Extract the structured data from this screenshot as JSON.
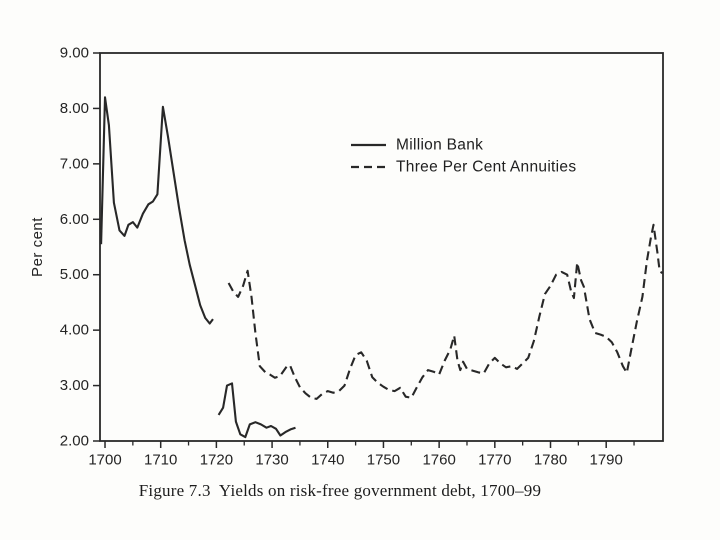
{
  "figure": {
    "caption": "Figure 7.3  Yields on risk-free government debt, 1700–99"
  },
  "chart_data": {
    "type": "line",
    "title": "",
    "xlabel": "",
    "ylabel": "Per cent",
    "xlim": [
      1699.1,
      1800.2
    ],
    "ylim": [
      2,
      9
    ],
    "grid": false,
    "legend_position": "upper-center-inside",
    "ink_color": "#282828",
    "x_ticks_major": [
      1700,
      1710,
      1720,
      1730,
      1740,
      1750,
      1760,
      1770,
      1780,
      1790
    ],
    "x_tick_labels": [
      "1700",
      "1710",
      "1720",
      "1730",
      "1740",
      "1750",
      "1760",
      "1770",
      "1780",
      "1790"
    ],
    "x_ticks_minor": [
      1705,
      1715,
      1725,
      1735,
      1745,
      1755,
      1765,
      1775,
      1785,
      1795
    ],
    "y_ticks": [
      2,
      3,
      4,
      5,
      6,
      7,
      8,
      9
    ],
    "y_tick_labels": [
      "2.00",
      "3.00",
      "4.00",
      "5.00",
      "6.00",
      "7.00",
      "8.00",
      "9.00"
    ],
    "legend": [
      {
        "label": "Million Bank",
        "style": "solid"
      },
      {
        "label": "Three Per Cent Annuities",
        "style": "dashed"
      }
    ],
    "series": [
      {
        "name": "Million Bank",
        "style": "solid",
        "segments": [
          [
            [
              1699.3,
              5.55
            ],
            [
              1700.0,
              8.2
            ],
            [
              1700.7,
              7.7
            ],
            [
              1701.6,
              6.3
            ],
            [
              1702.6,
              5.8
            ],
            [
              1703.5,
              5.7
            ],
            [
              1704.2,
              5.9
            ],
            [
              1705.0,
              5.95
            ],
            [
              1705.8,
              5.85
            ],
            [
              1706.8,
              6.1
            ],
            [
              1707.8,
              6.27
            ],
            [
              1708.6,
              6.32
            ],
            [
              1709.4,
              6.45
            ],
            [
              1710.4,
              8.03
            ],
            [
              1711.3,
              7.5
            ],
            [
              1712.3,
              6.85
            ],
            [
              1713.3,
              6.2
            ],
            [
              1714.3,
              5.62
            ],
            [
              1715.2,
              5.18
            ],
            [
              1716.2,
              4.8
            ],
            [
              1717.1,
              4.45
            ],
            [
              1718.0,
              4.22
            ],
            [
              1718.8,
              4.12
            ],
            [
              1719.4,
              4.2
            ]
          ],
          [
            [
              1720.4,
              2.47
            ],
            [
              1721.2,
              2.6
            ],
            [
              1721.9,
              3.0
            ],
            [
              1722.8,
              3.04
            ],
            [
              1723.5,
              2.35
            ],
            [
              1724.3,
              2.12
            ],
            [
              1725.2,
              2.07
            ],
            [
              1726.0,
              2.3
            ],
            [
              1727.0,
              2.34
            ],
            [
              1728.0,
              2.3
            ],
            [
              1729.0,
              2.24
            ],
            [
              1729.8,
              2.27
            ],
            [
              1730.7,
              2.22
            ],
            [
              1731.5,
              2.1
            ],
            [
              1732.4,
              2.16
            ],
            [
              1733.3,
              2.21
            ],
            [
              1734.2,
              2.24
            ]
          ]
        ]
      },
      {
        "name": "Three Per Cent Annuities",
        "style": "dashed",
        "segments": [
          [
            [
              1722.2,
              4.85
            ],
            [
              1723.0,
              4.7
            ],
            [
              1723.9,
              4.6
            ],
            [
              1724.8,
              4.8
            ],
            [
              1725.6,
              5.07
            ],
            [
              1726.3,
              4.6
            ],
            [
              1727.0,
              3.95
            ],
            [
              1727.8,
              3.35
            ],
            [
              1728.8,
              3.24
            ],
            [
              1729.6,
              3.2
            ],
            [
              1730.5,
              3.14
            ],
            [
              1731.4,
              3.17
            ],
            [
              1732.6,
              3.34
            ],
            [
              1733.2,
              3.37
            ],
            [
              1734.1,
              3.15
            ],
            [
              1735.0,
              2.97
            ],
            [
              1736.0,
              2.86
            ],
            [
              1737.0,
              2.78
            ],
            [
              1738.0,
              2.76
            ],
            [
              1739.0,
              2.85
            ],
            [
              1740.0,
              2.9
            ],
            [
              1741.0,
              2.87
            ],
            [
              1742.0,
              2.9
            ],
            [
              1743.0,
              3.0
            ],
            [
              1744.0,
              3.3
            ],
            [
              1745.0,
              3.55
            ],
            [
              1746.0,
              3.6
            ],
            [
              1747.0,
              3.45
            ],
            [
              1748.0,
              3.15
            ],
            [
              1749.0,
              3.05
            ],
            [
              1750.0,
              2.98
            ],
            [
              1751.0,
              2.92
            ],
            [
              1752.0,
              2.9
            ],
            [
              1753.0,
              2.96
            ],
            [
              1754.0,
              2.8
            ],
            [
              1755.0,
              2.78
            ],
            [
              1756.0,
              2.97
            ],
            [
              1757.0,
              3.15
            ],
            [
              1758.0,
              3.28
            ],
            [
              1759.0,
              3.25
            ],
            [
              1760.0,
              3.2
            ],
            [
              1761.0,
              3.45
            ],
            [
              1762.0,
              3.65
            ],
            [
              1762.7,
              3.9
            ],
            [
              1763.3,
              3.45
            ],
            [
              1763.8,
              3.28
            ],
            [
              1764.3,
              3.43
            ],
            [
              1765.0,
              3.3
            ],
            [
              1766.0,
              3.27
            ],
            [
              1767.0,
              3.24
            ],
            [
              1768.0,
              3.22
            ],
            [
              1769.0,
              3.4
            ],
            [
              1770.0,
              3.5
            ],
            [
              1771.0,
              3.4
            ],
            [
              1772.0,
              3.33
            ],
            [
              1773.0,
              3.35
            ],
            [
              1774.0,
              3.3
            ],
            [
              1775.0,
              3.4
            ],
            [
              1776.0,
              3.5
            ],
            [
              1777.0,
              3.8
            ],
            [
              1778.0,
              4.25
            ],
            [
              1779.0,
              4.65
            ],
            [
              1780.0,
              4.8
            ],
            [
              1781.0,
              5.0
            ],
            [
              1782.0,
              5.05
            ],
            [
              1783.0,
              5.0
            ],
            [
              1783.7,
              4.7
            ],
            [
              1784.2,
              4.58
            ],
            [
              1784.8,
              5.22
            ],
            [
              1785.5,
              4.9
            ],
            [
              1786.0,
              4.78
            ],
            [
              1787.0,
              4.2
            ],
            [
              1788.0,
              3.95
            ],
            [
              1789.0,
              3.92
            ],
            [
              1790.0,
              3.88
            ],
            [
              1791.0,
              3.78
            ],
            [
              1792.0,
              3.6
            ],
            [
              1793.0,
              3.35
            ],
            [
              1793.7,
              3.23
            ],
            [
              1794.5,
              3.65
            ],
            [
              1795.5,
              4.15
            ],
            [
              1796.5,
              4.6
            ],
            [
              1797.3,
              5.25
            ],
            [
              1798.0,
              5.65
            ],
            [
              1798.5,
              5.9
            ],
            [
              1799.2,
              5.4
            ],
            [
              1799.6,
              5.06
            ],
            [
              1800.1,
              5.03
            ]
          ]
        ]
      }
    ]
  }
}
